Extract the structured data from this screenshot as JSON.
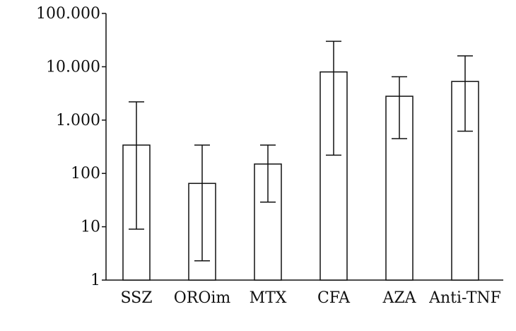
{
  "chart_data": {
    "type": "bar",
    "title": "",
    "xlabel": "",
    "ylabel": "",
    "y_scale": "log",
    "ylim": [
      1,
      100000
    ],
    "grid": false,
    "y_ticks": [
      1,
      10,
      100,
      1000,
      10000,
      100000
    ],
    "y_tick_labels": [
      "1",
      "10",
      "100",
      "1.000",
      "10.000",
      "100.000"
    ],
    "categories": [
      "SSZ",
      "OROim",
      "MTX",
      "CFA",
      "AZA",
      "Anti-TNF"
    ],
    "values": [
      340,
      65,
      150,
      8000,
      2800,
      5300
    ],
    "error_low": [
      9,
      2.3,
      29,
      220,
      450,
      620
    ],
    "error_high": [
      2200,
      340,
      340,
      30000,
      6500,
      16000
    ]
  }
}
